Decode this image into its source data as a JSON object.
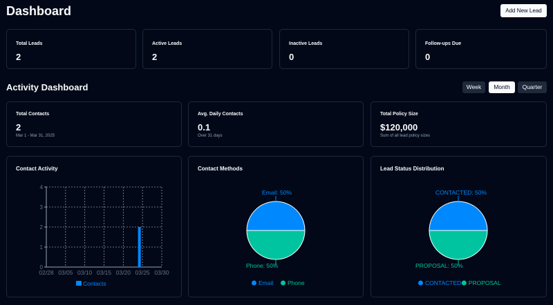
{
  "header": {
    "title": "Dashboard",
    "add_button": "Add New Lead"
  },
  "stats": [
    {
      "label": "Total Leads",
      "value": "2"
    },
    {
      "label": "Active Leads",
      "value": "2"
    },
    {
      "label": "Inactive Leads",
      "value": "0"
    },
    {
      "label": "Follow-ups Due",
      "value": "0"
    }
  ],
  "activity": {
    "title": "Activity Dashboard",
    "ranges": [
      "Week",
      "Month",
      "Quarter"
    ],
    "selected_range": "Month"
  },
  "metrics": [
    {
      "label": "Total Contacts",
      "value": "2",
      "sub": "Mar 1 - Mar 31, 2025"
    },
    {
      "label": "Avg. Daily Contacts",
      "value": "0.1",
      "sub": "Over 31 days"
    },
    {
      "label": "Total Policy Size",
      "value": "$120,000",
      "sub": "Sum of all lead policy sizes"
    }
  ],
  "charts": {
    "activity_title": "Contact Activity",
    "methods_title": "Contact Methods",
    "status_title": "Lead Status Distribution"
  },
  "colors": {
    "background": "#020817",
    "border": "#1e293b",
    "blue": "#0088fe",
    "teal": "#00c49f",
    "muted": "#64748b"
  },
  "chart_data": [
    {
      "type": "bar",
      "title": "Contact Activity",
      "x": [
        "02/28",
        "03/05",
        "03/10",
        "03/15",
        "03/20",
        "03/25",
        "03/30"
      ],
      "yticks": [
        0,
        1,
        2,
        3,
        4
      ],
      "ylim": [
        0,
        4
      ],
      "grid": true,
      "legend": "bottom",
      "series": [
        {
          "name": "Contacts",
          "color": "#0088fe",
          "points": [
            {
              "x": "03/24",
              "y": 2
            }
          ]
        }
      ]
    },
    {
      "type": "pie",
      "title": "Contact Methods",
      "legend": "bottom",
      "slices": [
        {
          "label": "Email",
          "value": 50,
          "display": "Email: 50%",
          "color": "#0088fe"
        },
        {
          "label": "Phone",
          "value": 50,
          "display": "Phone: 50%",
          "color": "#00c49f"
        }
      ]
    },
    {
      "type": "pie",
      "title": "Lead Status Distribution",
      "legend": "bottom",
      "slices": [
        {
          "label": "CONTACTED",
          "value": 50,
          "display": "CONTACTED: 50%",
          "color": "#0088fe"
        },
        {
          "label": "PROPOSAL",
          "value": 50,
          "display": "PROPOSAL: 50%",
          "color": "#00c49f"
        }
      ]
    }
  ]
}
